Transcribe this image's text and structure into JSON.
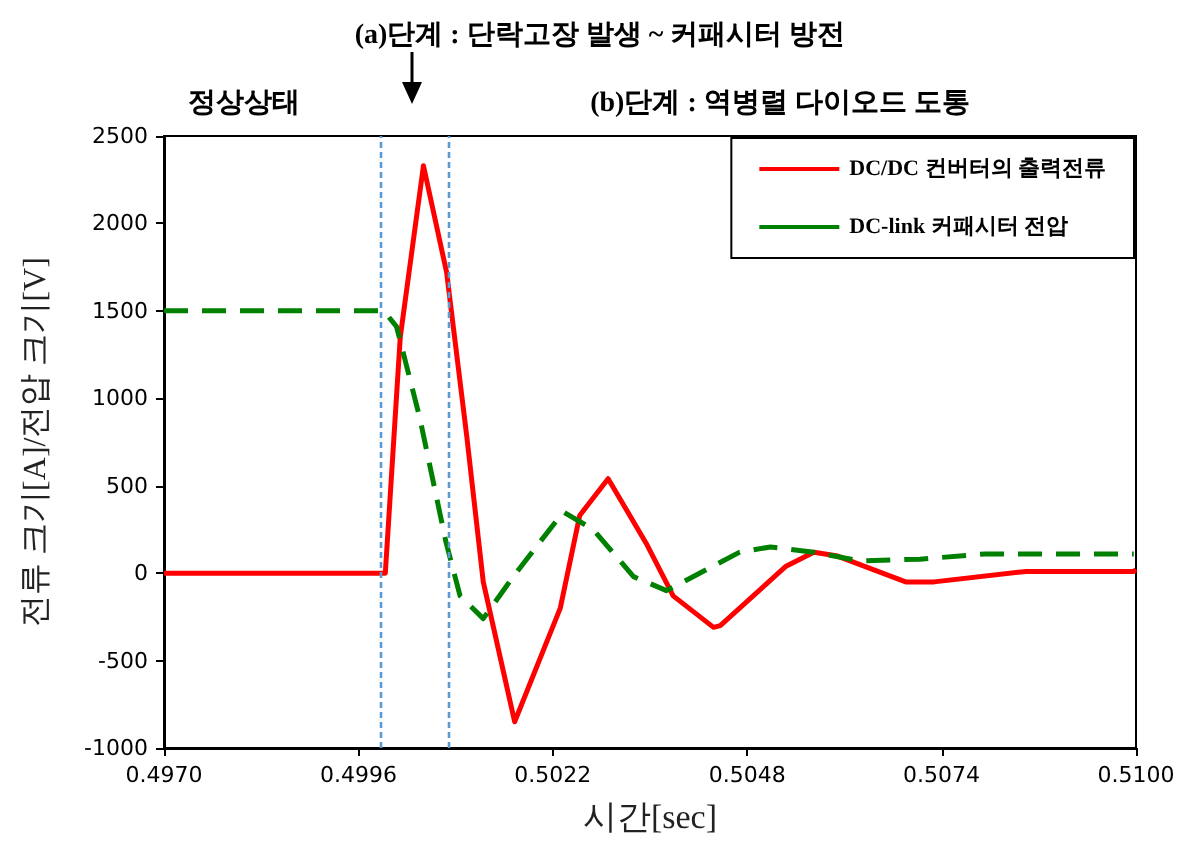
{
  "chart_data": {
    "type": "line",
    "xlabel": "시간[sec]",
    "ylabel": "전류 크기[A]/전압 크기[V]",
    "annotations": [
      "(a)단계 : 단락고장 발생 ~ 커패시터 방전",
      "정상상태",
      "(b)단계 : 역병렬 다이오드 도통"
    ],
    "series": [
      {
        "name": "DC/DC 컨버터의 출력전류",
        "color": "#ff0000",
        "line_style": "solid",
        "x": [
          0.497,
          0.49996,
          0.50016,
          0.50047,
          0.50078,
          0.50105,
          0.50127,
          0.50169,
          0.5023,
          0.50256,
          0.50294,
          0.50345,
          0.50381,
          0.50435,
          0.50444,
          0.50532,
          0.50569,
          0.50599,
          0.50692,
          0.5073,
          0.50853,
          0.50997,
          0.51
        ],
        "values": [
          0,
          0,
          1350,
          2330,
          1720,
          780,
          -50,
          -850,
          -200,
          330,
          540,
          170,
          -130,
          -310,
          -300,
          40,
          120,
          100,
          -50,
          -50,
          10,
          10,
          20
        ]
      },
      {
        "name": "DC-link 커패시터 전압",
        "color": "#008000",
        "line_style": "dashed",
        "x": [
          0.497,
          0.49994,
          0.50011,
          0.50042,
          0.50077,
          0.50096,
          0.50127,
          0.50167,
          0.50234,
          0.50274,
          0.50328,
          0.50372,
          0.5047,
          0.50511,
          0.50569,
          0.50631,
          0.50711,
          0.50799,
          0.50997
        ],
        "values": [
          1500,
          1500,
          1410,
          890,
          180,
          -130,
          -260,
          -20,
          350,
          250,
          -20,
          -100,
          120,
          150,
          120,
          70,
          80,
          110,
          110
        ]
      }
    ],
    "xlim": [
      0.497,
      0.51
    ],
    "xticks": [
      {
        "value": 0.497,
        "label": "0.4970"
      },
      {
        "value": 0.4996,
        "label": "0.4996"
      },
      {
        "value": 0.5022,
        "label": "0.5022"
      },
      {
        "value": 0.5048,
        "label": "0.5048"
      },
      {
        "value": 0.5074,
        "label": "0.5074"
      },
      {
        "value": 0.51,
        "label": "0.5100"
      }
    ],
    "ylim": [
      -1000,
      2500
    ],
    "yticks": [
      -1000,
      -500,
      0,
      500,
      1000,
      1500,
      2000,
      2500
    ],
    "ref_lines": [
      {
        "axis": "x",
        "value": 0.4999,
        "color": "#5b9bd5",
        "line_style": "dotted"
      },
      {
        "axis": "x",
        "value": 0.5008,
        "color": "#5b9bd5",
        "line_style": "dotted"
      }
    ],
    "grid": false,
    "legend": "top right",
    "marker": "none"
  }
}
